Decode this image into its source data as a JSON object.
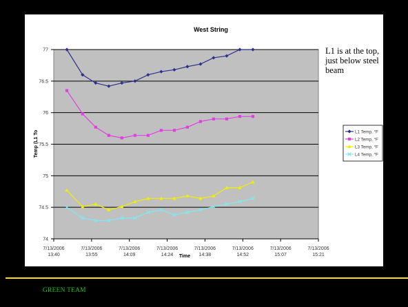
{
  "side_note": "L1 is at the top, just below steel beam",
  "footer": "GREEN TEAM",
  "colors": {
    "background": "#000000",
    "panel": "#ffffff",
    "plot_area": "#c0c0c0",
    "rule": "#ffe000",
    "footer_text": "#18c818"
  },
  "chart_data": {
    "type": "line",
    "title": "West String",
    "xlabel": "Time",
    "ylabel": "Temp (L1 To",
    "x_ticks": [
      [
        "7/13/2006",
        "13:40"
      ],
      [
        "7/13/2006",
        "13:55"
      ],
      [
        "7/13/2006",
        "14:09"
      ],
      [
        "7/13/2006",
        "14:24"
      ],
      [
        "7/13/2006",
        "14:38"
      ],
      [
        "7/13/2006",
        "14:52"
      ],
      [
        "7/13/2006",
        "15:07"
      ],
      [
        "7/13/2006",
        "15:21"
      ]
    ],
    "x_range_minutes": [
      0,
      101
    ],
    "y_ticks": [
      "74",
      "74.5",
      "75",
      "75.5",
      "76",
      "76.5",
      "77"
    ],
    "ylim": [
      74,
      77
    ],
    "grid": "horizontal",
    "legend_position": "right",
    "x_minutes": [
      5,
      11,
      16,
      21,
      26,
      31,
      36,
      41,
      46,
      51,
      56,
      61,
      66,
      71,
      76
    ],
    "series": [
      {
        "name": "L1 Temp, °F",
        "color": "#2e2e8c",
        "marker": "diamond",
        "values": [
          77.0,
          76.6,
          76.47,
          76.42,
          76.47,
          76.5,
          76.6,
          76.65,
          76.68,
          76.73,
          76.77,
          76.87,
          76.9,
          77.0,
          77.0
        ]
      },
      {
        "name": "L2 Temp, °F",
        "color": "#e040e0",
        "marker": "square",
        "values": [
          76.35,
          75.98,
          75.77,
          75.64,
          75.6,
          75.64,
          75.64,
          75.72,
          75.72,
          75.77,
          75.86,
          75.9,
          75.9,
          75.94,
          75.94
        ]
      },
      {
        "name": "L3 Temp, °F",
        "color": "#f0f000",
        "marker": "triangle",
        "values": [
          74.77,
          74.51,
          74.55,
          74.46,
          74.51,
          74.59,
          74.64,
          74.64,
          74.64,
          74.68,
          74.64,
          74.68,
          74.81,
          74.81,
          74.9
        ]
      },
      {
        "name": "L4 Temp, °F",
        "color": "#80e8f0",
        "marker": "cross",
        "values": [
          74.5,
          74.33,
          74.29,
          74.29,
          74.33,
          74.33,
          74.42,
          74.46,
          74.38,
          74.42,
          74.46,
          74.51,
          74.55,
          74.59,
          74.64
        ]
      }
    ]
  }
}
